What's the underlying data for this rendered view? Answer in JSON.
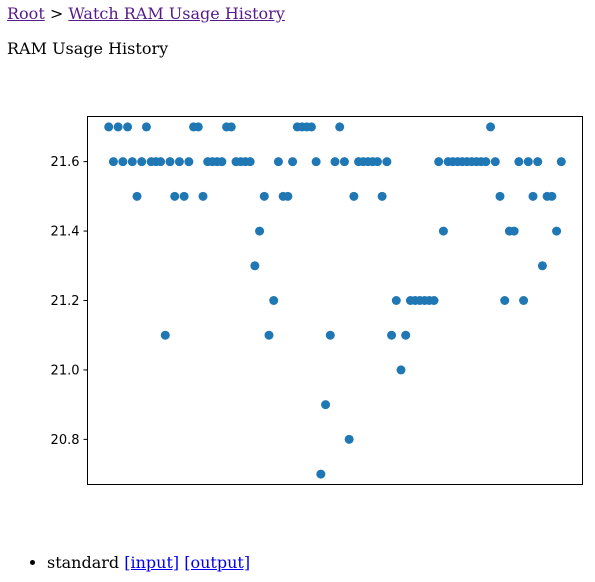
{
  "breadcrumb": {
    "root": "Root",
    "separator": ">",
    "current": "Watch RAM Usage History"
  },
  "page_title": "RAM Usage History",
  "links": {
    "item_label": "standard",
    "input": "[input]",
    "output": "[output]"
  },
  "colors": {
    "visited_link": "#551a8b",
    "link": "#0000ee",
    "marker": "#1f77b4"
  },
  "chart_data": {
    "type": "scatter",
    "title": "",
    "xlabel": "",
    "ylabel": "",
    "x_tick_labels": "none",
    "grid": false,
    "ylim": [
      20.67,
      21.73
    ],
    "xlim": [
      -4.5,
      100.5
    ],
    "yticks": [
      "20.8",
      "21.0",
      "21.2",
      "21.4",
      "21.6"
    ],
    "x": [
      0,
      1,
      2,
      3,
      4,
      5,
      6,
      7,
      8,
      9,
      10,
      11,
      12,
      13,
      14,
      15,
      16,
      17,
      18,
      19,
      20,
      21,
      22,
      23,
      24,
      25,
      26,
      27,
      28,
      29,
      30,
      31,
      32,
      33,
      34,
      35,
      36,
      37,
      38,
      39,
      40,
      41,
      42,
      43,
      44,
      45,
      46,
      47,
      48,
      49,
      50,
      51,
      52,
      53,
      54,
      55,
      56,
      57,
      58,
      59,
      60,
      61,
      62,
      63,
      64,
      65,
      66,
      67,
      68,
      69,
      70,
      71,
      72,
      73,
      74,
      75,
      76,
      77,
      78,
      79,
      80,
      81,
      82,
      83,
      84,
      85,
      86,
      87,
      88,
      89,
      90,
      91,
      92,
      93,
      94,
      95,
      96
    ],
    "values": [
      21.7,
      21.6,
      21.7,
      21.6,
      21.7,
      21.6,
      21.5,
      21.6,
      21.7,
      21.6,
      21.6,
      21.6,
      21.1,
      21.6,
      21.5,
      21.6,
      21.5,
      21.6,
      21.7,
      21.7,
      21.5,
      21.6,
      21.6,
      21.6,
      21.6,
      21.7,
      21.7,
      21.6,
      21.6,
      21.6,
      21.6,
      21.3,
      21.4,
      21.5,
      21.1,
      21.2,
      21.6,
      21.5,
      21.5,
      21.6,
      21.7,
      21.7,
      21.7,
      21.7,
      21.6,
      20.7,
      20.9,
      21.1,
      21.6,
      21.7,
      21.6,
      20.8,
      21.5,
      21.6,
      21.6,
      21.6,
      21.6,
      21.6,
      21.5,
      21.6,
      21.1,
      21.2,
      21.0,
      21.1,
      21.2,
      21.2,
      21.2,
      21.2,
      21.2,
      21.2,
      21.6,
      21.4,
      21.6,
      21.6,
      21.6,
      21.6,
      21.6,
      21.6,
      21.6,
      21.6,
      21.6,
      21.7,
      21.6,
      21.5,
      21.2,
      21.4,
      21.4,
      21.6,
      21.2,
      21.6,
      21.5,
      21.6,
      21.3,
      21.5,
      21.5,
      21.4,
      21.6
    ]
  }
}
